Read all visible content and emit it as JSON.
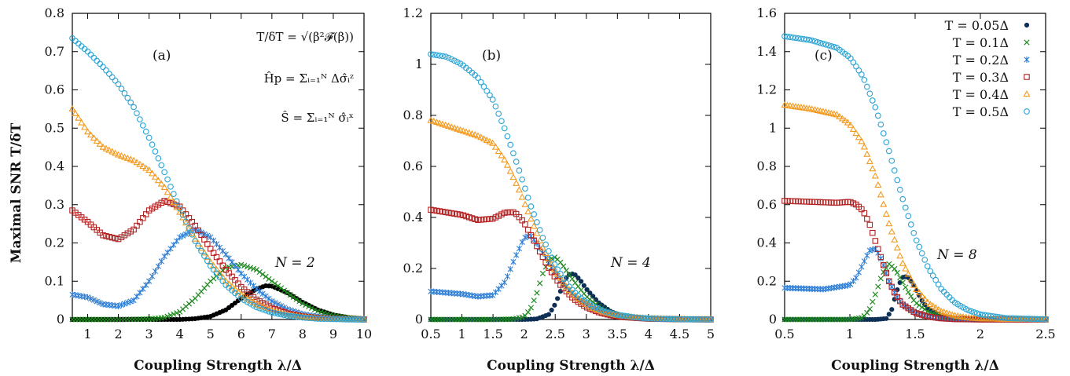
{
  "chart_data": [
    {
      "type": "scatter",
      "panel_label": "(a)",
      "annotation": "N = 2",
      "formulas": [
        "T/δT = √(β²𝓕(β))",
        "Ĥp = Σᵢ₌₁ᴺ Δσ̂ᵢᶻ",
        "Ŝ = Σᵢ₌₁ᴺ σ̂ᵢˣ"
      ],
      "xlabel": "Coupling Strength λ/Δ",
      "ylabel": "Maximal SNR T/δT",
      "xlim": [
        0.5,
        10
      ],
      "ylim": [
        0,
        0.8
      ],
      "xticks": [
        1,
        2,
        3,
        4,
        5,
        6,
        7,
        8,
        9,
        10
      ],
      "xtick_labels": [
        "1",
        "2",
        "3",
        "4",
        "5",
        "6",
        "7",
        "8",
        "9",
        "10"
      ],
      "yticks": [
        0,
        0.1,
        0.2,
        0.3,
        0.4,
        0.5,
        0.6,
        0.7,
        0.8
      ],
      "ytick_labels": [
        "0",
        "0.1",
        "0.2",
        "0.3",
        "0.4",
        "0.5",
        "0.6",
        "0.7",
        "0.8"
      ],
      "series": [
        {
          "name": "T = 0.05Δ",
          "x": [
            0.5,
            1,
            2,
            3,
            4,
            4.5,
            5,
            5.5,
            6,
            6.5,
            6.8,
            7,
            7.5,
            8,
            8.5,
            9,
            9.5,
            10
          ],
          "y": [
            0,
            0,
            0,
            0,
            0,
            0.002,
            0.008,
            0.025,
            0.055,
            0.08,
            0.088,
            0.087,
            0.07,
            0.045,
            0.025,
            0.012,
            0.005,
            0.002
          ]
        },
        {
          "name": "T = 0.1Δ",
          "x": [
            0.5,
            1,
            2,
            3,
            3.5,
            4,
            4.5,
            5,
            5.5,
            6,
            6.5,
            7,
            7.5,
            8,
            8.5,
            9,
            9.5,
            10
          ],
          "y": [
            0,
            0,
            0,
            0.001,
            0.005,
            0.02,
            0.055,
            0.1,
            0.135,
            0.143,
            0.13,
            0.1,
            0.07,
            0.042,
            0.022,
            0.01,
            0.004,
            0.001
          ]
        },
        {
          "name": "T = 0.2Δ",
          "x": [
            0.5,
            1,
            1.5,
            2,
            2.5,
            3,
            3.5,
            4,
            4.5,
            5,
            5.5,
            6,
            6.5,
            7,
            7.5,
            8,
            8.5,
            9,
            9.5,
            10
          ],
          "y": [
            0.065,
            0.058,
            0.04,
            0.035,
            0.05,
            0.1,
            0.165,
            0.215,
            0.235,
            0.215,
            0.17,
            0.12,
            0.08,
            0.048,
            0.027,
            0.014,
            0.007,
            0.003,
            0.001,
            0
          ]
        },
        {
          "name": "T = 0.3Δ",
          "x": [
            0.5,
            1,
            1.5,
            2,
            2.5,
            3,
            3.5,
            4,
            4.5,
            5,
            5.5,
            6,
            6.5,
            7,
            7.5,
            8,
            8.5,
            9,
            9.5,
            10
          ],
          "y": [
            0.285,
            0.255,
            0.22,
            0.21,
            0.235,
            0.285,
            0.31,
            0.295,
            0.245,
            0.185,
            0.13,
            0.085,
            0.052,
            0.03,
            0.016,
            0.008,
            0.004,
            0.002,
            0.001,
            0
          ]
        },
        {
          "name": "T = 0.4Δ",
          "x": [
            0.5,
            1,
            1.5,
            2,
            2.5,
            3,
            3.5,
            4,
            4.5,
            5,
            5.5,
            6,
            6.5,
            7,
            7.5,
            8,
            8.5,
            9,
            9.5,
            10
          ],
          "y": [
            0.55,
            0.49,
            0.45,
            0.43,
            0.415,
            0.39,
            0.345,
            0.28,
            0.21,
            0.15,
            0.1,
            0.065,
            0.04,
            0.023,
            0.013,
            0.007,
            0.003,
            0.001,
            0.001,
            0
          ]
        },
        {
          "name": "T = 0.5Δ",
          "x": [
            0.5,
            1,
            1.5,
            2,
            2.5,
            3,
            3.5,
            4,
            4.5,
            5,
            5.5,
            6,
            6.5,
            7,
            7.5,
            8,
            8.5,
            9,
            9.5,
            10
          ],
          "y": [
            0.735,
            0.7,
            0.66,
            0.615,
            0.555,
            0.475,
            0.385,
            0.29,
            0.205,
            0.14,
            0.09,
            0.055,
            0.032,
            0.018,
            0.01,
            0.005,
            0.002,
            0.001,
            0,
            0
          ]
        }
      ]
    },
    {
      "type": "scatter",
      "panel_label": "(b)",
      "annotation": "N = 4",
      "xlabel": "Coupling Strength λ/Δ",
      "xlim": [
        0.5,
        5
      ],
      "ylim": [
        0,
        1.2
      ],
      "xticks": [
        0.5,
        1,
        1.5,
        2,
        2.5,
        3,
        3.5,
        4,
        4.5,
        5
      ],
      "xtick_labels": [
        "0.5",
        "1",
        "1.5",
        "2",
        "2.5",
        "3",
        "3.5",
        "4",
        "4.5",
        "5"
      ],
      "yticks": [
        0,
        0.2,
        0.4,
        0.6,
        0.8,
        1,
        1.2
      ],
      "ytick_labels": [
        "0",
        "0.2",
        "0.4",
        "0.6",
        "0.8",
        "1",
        "1.2"
      ],
      "series": [
        {
          "name": "T = 0.05Δ",
          "x": [
            0.5,
            1,
            1.5,
            2,
            2.2,
            2.4,
            2.5,
            2.6,
            2.7,
            2.8,
            2.9,
            3,
            3.2,
            3.4,
            3.6,
            3.8,
            4,
            4.5,
            5
          ],
          "y": [
            0,
            0,
            0,
            0,
            0.002,
            0.02,
            0.06,
            0.12,
            0.175,
            0.18,
            0.155,
            0.12,
            0.065,
            0.03,
            0.013,
            0.005,
            0.002,
            0,
            0
          ]
        },
        {
          "name": "T = 0.1Δ",
          "x": [
            0.5,
            1,
            1.5,
            1.8,
            2,
            2.1,
            2.2,
            2.3,
            2.4,
            2.5,
            2.6,
            2.8,
            3,
            3.2,
            3.4,
            3.6,
            4,
            4.5,
            5
          ],
          "y": [
            0,
            0,
            0,
            0.001,
            0.01,
            0.04,
            0.1,
            0.18,
            0.235,
            0.245,
            0.22,
            0.15,
            0.09,
            0.05,
            0.025,
            0.012,
            0.003,
            0,
            0
          ]
        },
        {
          "name": "T = 0.2Δ",
          "x": [
            0.5,
            1,
            1.25,
            1.5,
            1.7,
            1.85,
            2,
            2.1,
            2.2,
            2.4,
            2.6,
            2.8,
            3,
            3.2,
            3.4,
            3.6,
            4,
            4.5,
            5
          ],
          "y": [
            0.11,
            0.1,
            0.09,
            0.095,
            0.15,
            0.24,
            0.32,
            0.33,
            0.3,
            0.22,
            0.15,
            0.095,
            0.058,
            0.034,
            0.019,
            0.01,
            0.003,
            0.001,
            0
          ]
        },
        {
          "name": "T = 0.3Δ",
          "x": [
            0.5,
            1,
            1.25,
            1.5,
            1.7,
            1.85,
            2,
            2.2,
            2.4,
            2.6,
            2.8,
            3,
            3.2,
            3.4,
            3.6,
            4,
            4.5,
            5
          ],
          "y": [
            0.43,
            0.41,
            0.39,
            0.395,
            0.42,
            0.42,
            0.38,
            0.29,
            0.2,
            0.13,
            0.08,
            0.048,
            0.028,
            0.016,
            0.009,
            0.003,
            0.001,
            0
          ]
        },
        {
          "name": "T = 0.4Δ",
          "x": [
            0.5,
            0.75,
            1,
            1.25,
            1.5,
            1.7,
            1.9,
            2.1,
            2.3,
            2.5,
            2.7,
            2.9,
            3.1,
            3.3,
            3.5,
            3.8,
            4,
            4.5,
            5
          ],
          "y": [
            0.78,
            0.76,
            0.74,
            0.72,
            0.69,
            0.62,
            0.52,
            0.4,
            0.28,
            0.19,
            0.12,
            0.075,
            0.045,
            0.027,
            0.016,
            0.007,
            0.004,
            0.001,
            0
          ]
        },
        {
          "name": "T = 0.5Δ",
          "x": [
            0.5,
            0.75,
            1,
            1.25,
            1.5,
            1.7,
            1.9,
            2.1,
            2.3,
            2.5,
            2.7,
            2.9,
            3.1,
            3.3,
            3.5,
            3.8,
            4,
            4.5,
            5
          ],
          "y": [
            1.04,
            1.03,
            1.0,
            0.95,
            0.86,
            0.74,
            0.6,
            0.45,
            0.32,
            0.21,
            0.135,
            0.085,
            0.052,
            0.031,
            0.018,
            0.008,
            0.004,
            0.001,
            0
          ]
        }
      ]
    },
    {
      "type": "scatter",
      "panel_label": "(c)",
      "annotation": "N = 8",
      "xlabel": "Coupling Strength λ/Δ",
      "xlim": [
        0.5,
        2.5
      ],
      "ylim": [
        0,
        1.6
      ],
      "xticks": [
        0.5,
        1,
        1.5,
        2,
        2.5
      ],
      "xtick_labels": [
        "0.5",
        "1",
        "1.5",
        "2",
        "2.5"
      ],
      "yticks": [
        0,
        0.2,
        0.4,
        0.6,
        0.8,
        1,
        1.2,
        1.4,
        1.6
      ],
      "ytick_labels": [
        "0",
        "0.2",
        "0.4",
        "0.6",
        "0.8",
        "1",
        "1.2",
        "1.4",
        "1.6"
      ],
      "legend_position": "top-right",
      "series": [
        {
          "name": "T = 0.05Δ",
          "x": [
            0.5,
            1,
            1.2,
            1.28,
            1.32,
            1.36,
            1.4,
            1.44,
            1.48,
            1.52,
            1.56,
            1.6,
            1.7,
            1.8,
            1.9,
            2,
            2.5
          ],
          "y": [
            0,
            0,
            0,
            0.005,
            0.05,
            0.15,
            0.22,
            0.225,
            0.19,
            0.14,
            0.09,
            0.055,
            0.02,
            0.007,
            0.002,
            0.001,
            0
          ]
        },
        {
          "name": "T = 0.1Δ",
          "x": [
            0.5,
            1,
            1.1,
            1.15,
            1.2,
            1.25,
            1.3,
            1.35,
            1.4,
            1.45,
            1.5,
            1.6,
            1.7,
            1.8,
            1.9,
            2,
            2.5
          ],
          "y": [
            0,
            0,
            0.01,
            0.05,
            0.14,
            0.24,
            0.29,
            0.26,
            0.2,
            0.14,
            0.09,
            0.04,
            0.016,
            0.006,
            0.002,
            0.001,
            0
          ]
        },
        {
          "name": "T = 0.2Δ",
          "x": [
            0.5,
            0.8,
            1,
            1.05,
            1.1,
            1.15,
            1.2,
            1.25,
            1.3,
            1.35,
            1.4,
            1.5,
            1.6,
            1.7,
            1.8,
            2,
            2.5
          ],
          "y": [
            0.165,
            0.158,
            0.18,
            0.22,
            0.29,
            0.36,
            0.37,
            0.3,
            0.2,
            0.13,
            0.08,
            0.035,
            0.015,
            0.006,
            0.002,
            0,
            0
          ]
        },
        {
          "name": "T = 0.3Δ",
          "x": [
            0.5,
            0.7,
            0.9,
            1,
            1.05,
            1.1,
            1.15,
            1.2,
            1.25,
            1.3,
            1.35,
            1.4,
            1.5,
            1.6,
            1.7,
            1.8,
            2,
            2.5
          ],
          "y": [
            0.62,
            0.615,
            0.61,
            0.615,
            0.6,
            0.57,
            0.5,
            0.4,
            0.3,
            0.2,
            0.13,
            0.08,
            0.035,
            0.015,
            0.006,
            0.002,
            0,
            0
          ]
        },
        {
          "name": "T = 0.4Δ",
          "x": [
            0.5,
            0.7,
            0.9,
            1,
            1.1,
            1.2,
            1.3,
            1.4,
            1.5,
            1.6,
            1.7,
            1.8,
            1.9,
            2,
            2.2,
            2.5
          ],
          "y": [
            1.12,
            1.1,
            1.07,
            1.02,
            0.92,
            0.74,
            0.5,
            0.3,
            0.165,
            0.085,
            0.042,
            0.02,
            0.009,
            0.004,
            0.001,
            0
          ]
        },
        {
          "name": "T = 0.5Δ",
          "x": [
            0.5,
            0.7,
            0.9,
            1,
            1.1,
            1.2,
            1.3,
            1.4,
            1.5,
            1.6,
            1.7,
            1.8,
            1.9,
            2,
            2.2,
            2.5
          ],
          "y": [
            1.48,
            1.46,
            1.42,
            1.37,
            1.27,
            1.1,
            0.88,
            0.64,
            0.43,
            0.27,
            0.16,
            0.09,
            0.05,
            0.026,
            0.007,
            0.001
          ]
        }
      ]
    }
  ],
  "style": {
    "colors": [
      "#0d2f56",
      "#1f8a1f",
      "#2f7fd6",
      "#b22222",
      "#f39a1e",
      "#2aa3d4"
    ],
    "panel_a_first_series_color": "#000000",
    "markers": [
      "filled-circle",
      "x",
      "star",
      "open-square",
      "open-triangle",
      "open-circle"
    ]
  }
}
